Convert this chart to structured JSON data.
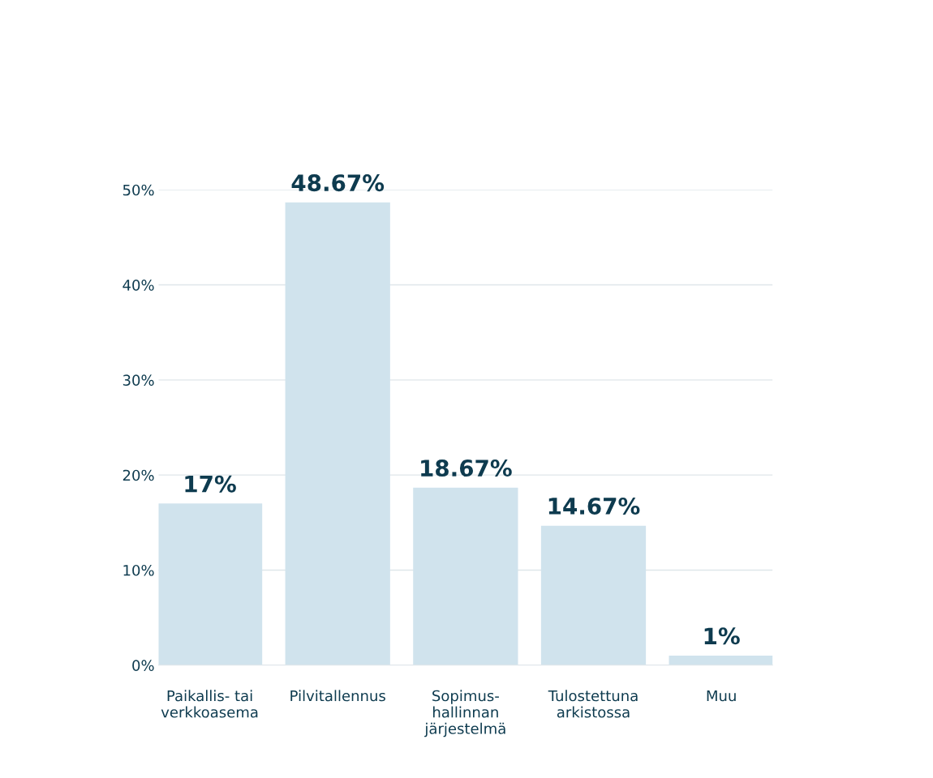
{
  "chart_data": {
    "type": "bar",
    "categories": [
      "Paikallis- tai\nverkkoasema",
      "Pilvitallennus",
      "Sopimus-\nhallinnan\njärjestelmä",
      "Tulostettuna\narkistossa",
      "Muu"
    ],
    "values": [
      17,
      48.67,
      18.67,
      14.67,
      1
    ],
    "value_labels": [
      "17%",
      "48.67%",
      "18.67%",
      "14.67%",
      "1%"
    ],
    "color": "#d0e3ed",
    "ylim": [
      0,
      50
    ],
    "yticks": [
      {
        "value": 0,
        "label": "0%"
      },
      {
        "value": 10,
        "label": "10%"
      },
      {
        "value": 20,
        "label": "20%"
      },
      {
        "value": 30,
        "label": "30%"
      },
      {
        "value": 40,
        "label": "40%"
      },
      {
        "value": 50,
        "label": "50%"
      }
    ],
    "grid": "y"
  }
}
